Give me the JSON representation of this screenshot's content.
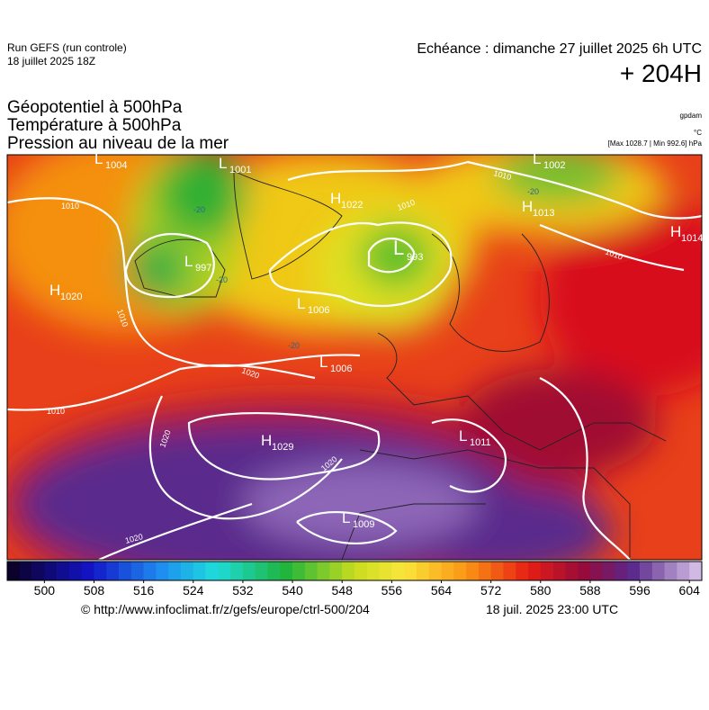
{
  "header": {
    "run": "Run GEFS (run controle)",
    "run_date": "18 juillet 2025 18Z",
    "valid": "Echéance : dimanche 27 juillet 2025 6h UTC",
    "lead": "+ 204H",
    "titles": [
      "Géopotentiel à 500hPa",
      "Température à 500hPa",
      "Pression au niveau de la mer"
    ],
    "unit_geo": "gpdam",
    "unit_temp": "°C",
    "pressure_range": "[Max 1028.7 | Min 992.6] hPa"
  },
  "map": {
    "centers": [
      {
        "letter": "L",
        "value": "1004"
      },
      {
        "letter": "L",
        "value": "1001"
      },
      {
        "letter": "L",
        "value": "997"
      },
      {
        "letter": "H",
        "value": "1020"
      },
      {
        "letter": "L",
        "value": "1006"
      },
      {
        "letter": "L",
        "value": "1006"
      },
      {
        "letter": "H",
        "value": "1022"
      },
      {
        "letter": "L",
        "value": "993"
      },
      {
        "letter": "H",
        "value": "1013"
      },
      {
        "letter": "H",
        "value": "1014"
      },
      {
        "letter": "L",
        "value": "1002"
      },
      {
        "letter": "H",
        "value": "1029"
      },
      {
        "letter": "L",
        "value": "1011"
      },
      {
        "letter": "L",
        "value": "1009"
      }
    ],
    "isobar_labels": [
      "1010",
      "1010",
      "1020",
      "1020",
      "1020",
      "1020",
      "1010",
      "1010",
      "1010",
      "1010"
    ],
    "temp_labels": [
      "-20",
      "-20",
      "-20",
      "-20"
    ]
  },
  "colorbar": {
    "lim": [
      494,
      606
    ],
    "ticks": [
      500,
      508,
      516,
      524,
      532,
      540,
      548,
      556,
      564,
      572,
      580,
      588,
      596,
      604
    ]
  },
  "footer": {
    "source": "© http://www.infoclimat.fr/z/gefs/europe/ctrl-500/204",
    "generated": "18 juil. 2025 23:00 UTC"
  }
}
